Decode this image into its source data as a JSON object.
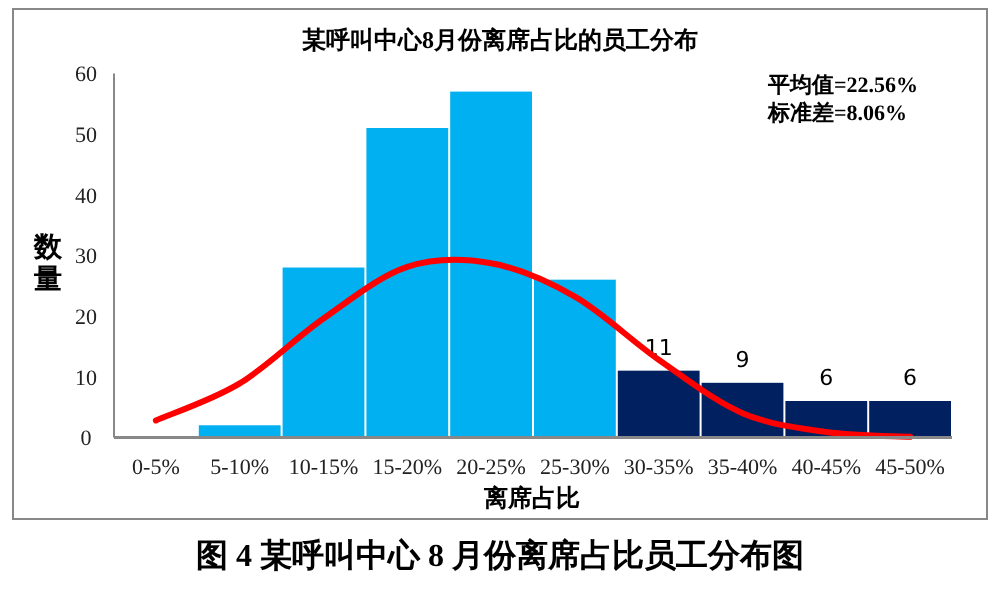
{
  "chart_data": {
    "type": "bar",
    "title": "某呼叫中心8月份离席占比的员工分布",
    "xlabel": "离席占比",
    "ylabel": "数量",
    "categories": [
      "0-5%",
      "5-10%",
      "10-15%",
      "15-20%",
      "20-25%",
      "25-30%",
      "30-35%",
      "35-40%",
      "40-45%",
      "45-50%"
    ],
    "series": [
      {
        "colors": [
          "#00b0f0",
          "#00b0f0",
          "#00b0f0",
          "#00b0f0",
          "#00b0f0",
          "#00b0f0",
          "#002060",
          "#002060",
          "#002060",
          "#002060"
        ],
        "values": [
          0,
          2,
          28,
          51,
          57,
          26,
          11,
          9,
          6,
          6
        ],
        "value_labels": [
          null,
          null,
          null,
          null,
          null,
          null,
          "11",
          "9",
          "6",
          "6"
        ]
      },
      {
        "type": "line",
        "color": "#ff0000",
        "values": [
          2.8,
          8.9,
          19.6,
          28.1,
          28.7,
          23.2,
          12.8,
          4.0,
          0.9,
          0.1
        ]
      }
    ],
    "ylim": [
      0,
      60
    ],
    "yticks": [
      0,
      10,
      20,
      30,
      40,
      50,
      60
    ],
    "grid": false,
    "annotations": [
      "平均值=22.56%",
      "标准差=8.06%",
      "图 4 某呼叫中心 8 月份离席占比员工分布图"
    ]
  }
}
